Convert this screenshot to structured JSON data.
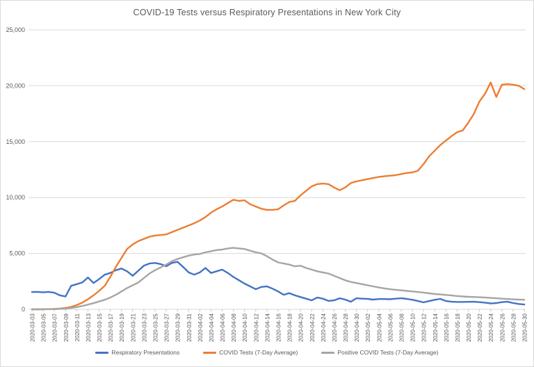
{
  "chart_data": {
    "type": "line",
    "title": "COVID-19 Tests versus Respiratory Presentations in New York City",
    "xlabel": "",
    "ylabel": "",
    "ylim": [
      0,
      25000
    ],
    "ytick_step": 5000,
    "y_tick_labels": [
      "0",
      "5,000",
      "10,000",
      "15,000",
      "20,000",
      "25,000"
    ],
    "x_tick_interval": 2,
    "grid": true,
    "legend_position": "bottom",
    "grid_color": "#d9d9d9",
    "tick_color": "#bfbfbf",
    "text_color": "#595959",
    "x": [
      "2020-03-03",
      "2020-03-04",
      "2020-03-05",
      "2020-03-06",
      "2020-03-07",
      "2020-03-08",
      "2020-03-09",
      "2020-03-10",
      "2020-03-11",
      "2020-03-12",
      "2020-03-13",
      "2020-03-14",
      "2020-03-15",
      "2020-03-16",
      "2020-03-17",
      "2020-03-18",
      "2020-03-19",
      "2020-03-20",
      "2020-03-21",
      "2020-03-22",
      "2020-03-23",
      "2020-03-24",
      "2020-03-25",
      "2020-03-26",
      "2020-03-27",
      "2020-03-28",
      "2020-03-29",
      "2020-03-30",
      "2020-03-31",
      "2020-04-01",
      "2020-04-02",
      "2020-04-03",
      "2020-04-04",
      "2020-04-05",
      "2020-04-06",
      "2020-04-07",
      "2020-04-08",
      "2020-04-09",
      "2020-04-10",
      "2020-04-11",
      "2020-04-12",
      "2020-04-13",
      "2020-04-14",
      "2020-04-15",
      "2020-04-16",
      "2020-04-17",
      "2020-04-18",
      "2020-04-19",
      "2020-04-20",
      "2020-04-21",
      "2020-04-22",
      "2020-04-23",
      "2020-04-24",
      "2020-04-25",
      "2020-04-26",
      "2020-04-27",
      "2020-04-28",
      "2020-04-29",
      "2020-04-30",
      "2020-05-01",
      "2020-05-02",
      "2020-05-03",
      "2020-05-04",
      "2020-05-05",
      "2020-05-06",
      "2020-05-07",
      "2020-05-08",
      "2020-05-09",
      "2020-05-10",
      "2020-05-11",
      "2020-05-12",
      "2020-05-13",
      "2020-05-14",
      "2020-05-15",
      "2020-05-16",
      "2020-05-17",
      "2020-05-18",
      "2020-05-19",
      "2020-05-20",
      "2020-05-21",
      "2020-05-22",
      "2020-05-23",
      "2020-05-24",
      "2020-05-25",
      "2020-05-26",
      "2020-05-27",
      "2020-05-28",
      "2020-05-29",
      "2020-05-30"
    ],
    "series": [
      {
        "name": "Respiratory Presentations",
        "color": "#4472C4",
        "values": [
          1550,
          1560,
          1520,
          1560,
          1480,
          1250,
          1150,
          2100,
          2250,
          2400,
          2850,
          2350,
          2700,
          3100,
          3250,
          3500,
          3650,
          3400,
          3000,
          3450,
          3900,
          4100,
          4150,
          4050,
          3850,
          4150,
          4250,
          3800,
          3300,
          3100,
          3300,
          3700,
          3250,
          3400,
          3550,
          3250,
          2900,
          2600,
          2300,
          2050,
          1800,
          2000,
          2050,
          1850,
          1600,
          1300,
          1450,
          1250,
          1100,
          950,
          800,
          1050,
          950,
          750,
          800,
          990,
          870,
          680,
          990,
          950,
          930,
          870,
          920,
          920,
          900,
          950,
          990,
          930,
          850,
          740,
          620,
          740,
          850,
          930,
          740,
          680,
          660,
          660,
          670,
          680,
          640,
          600,
          520,
          560,
          640,
          680,
          560,
          480,
          430
        ]
      },
      {
        "name": "COVID Tests (7-Day Average)",
        "color": "#ED7D31",
        "values": [
          0,
          0,
          10,
          20,
          40,
          60,
          120,
          220,
          380,
          600,
          900,
          1250,
          1650,
          2100,
          2900,
          3800,
          4600,
          5400,
          5800,
          6100,
          6300,
          6500,
          6600,
          6650,
          6700,
          6900,
          7100,
          7300,
          7500,
          7700,
          7950,
          8250,
          8650,
          8950,
          9200,
          9500,
          9800,
          9700,
          9750,
          9400,
          9200,
          9000,
          8900,
          8900,
          8950,
          9300,
          9600,
          9700,
          10200,
          10600,
          11000,
          11200,
          11250,
          11200,
          10900,
          10650,
          10900,
          11300,
          11450,
          11550,
          11650,
          11750,
          11850,
          11900,
          11950,
          12000,
          12100,
          12200,
          12250,
          12400,
          13000,
          13700,
          14200,
          14700,
          15100,
          15500,
          15850,
          16000,
          16700,
          17500,
          18600,
          19300,
          20300,
          19000,
          20100,
          20150,
          20100,
          20000,
          19700
        ]
      },
      {
        "name": "Positive COVID Tests (7-Day Average)",
        "color": "#A5A5A5",
        "values": [
          0,
          0,
          0,
          10,
          20,
          40,
          70,
          120,
          200,
          300,
          420,
          550,
          700,
          850,
          1050,
          1300,
          1600,
          1900,
          2150,
          2400,
          2800,
          3200,
          3500,
          3750,
          4000,
          4300,
          4500,
          4650,
          4800,
          4900,
          4950,
          5100,
          5200,
          5300,
          5350,
          5450,
          5500,
          5450,
          5400,
          5250,
          5100,
          5000,
          4750,
          4450,
          4200,
          4100,
          4000,
          3850,
          3900,
          3700,
          3550,
          3400,
          3300,
          3200,
          3000,
          2800,
          2600,
          2450,
          2350,
          2250,
          2150,
          2050,
          1950,
          1870,
          1800,
          1750,
          1700,
          1650,
          1600,
          1550,
          1500,
          1430,
          1370,
          1330,
          1290,
          1240,
          1190,
          1150,
          1120,
          1100,
          1080,
          1050,
          1020,
          990,
          950,
          920,
          890,
          870,
          850
        ]
      }
    ]
  }
}
